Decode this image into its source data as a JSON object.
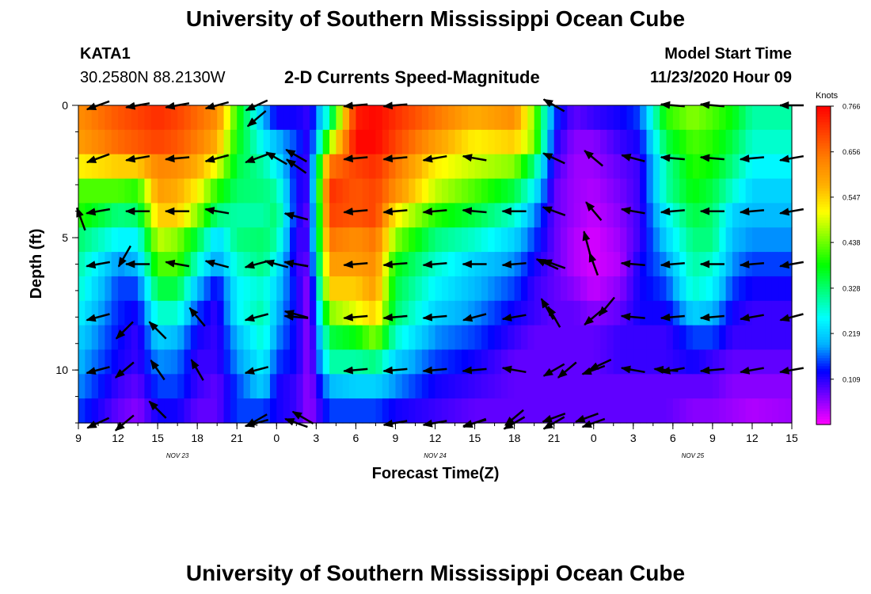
{
  "page": {
    "title": "University of Southern Mississippi Ocean Cube",
    "footer_title": "University of Southern Mississippi Ocean Cube",
    "station": "KATA1",
    "coords": "30.2580N 88.2130W",
    "subtitle": "2-D Currents Speed-Magnitude",
    "model_start_label": "Model Start Time",
    "model_start_value": "11/23/2020 Hour 09"
  },
  "chart_data": {
    "type": "heatmap",
    "title": "2-D Currents Speed-Magnitude",
    "xlabel": "Forecast Time(Z)",
    "ylabel": "Depth (ft)",
    "x_tick_labels": [
      "9",
      "12",
      "15",
      "18",
      "21",
      "0",
      "3",
      "6",
      "9",
      "12",
      "15",
      "18",
      "21",
      "0",
      "3",
      "6",
      "9",
      "12",
      "15"
    ],
    "x_tick_hours": [
      0,
      3,
      6,
      9,
      12,
      15,
      18,
      21,
      24,
      27,
      30,
      33,
      36,
      39,
      42,
      45,
      48,
      51,
      54
    ],
    "x_range_hours": [
      0,
      54
    ],
    "date_labels": [
      {
        "label": "NOV 23",
        "hour": 7.5
      },
      {
        "label": "NOV 24",
        "hour": 27
      },
      {
        "label": "NOV 25",
        "hour": 46.5
      }
    ],
    "y_ticks": [
      0,
      5,
      10
    ],
    "y_tick_labels": [
      "0",
      "5",
      "10"
    ],
    "y_range_ft": [
      0,
      12
    ],
    "y_inverted": true,
    "colorbar": {
      "unit": "Knots",
      "ticks": [
        "0.766",
        "0.656",
        "0.547",
        "0.438",
        "0.328",
        "0.219",
        "0.109"
      ],
      "min": 0.0,
      "max": 0.766,
      "colors": [
        "#ff00ff",
        "#8000ff",
        "#0000ff",
        "#00b0ff",
        "#00ffff",
        "#00ff80",
        "#00ff00",
        "#80ff00",
        "#ffff00",
        "#ffb000",
        "#ff8000",
        "#ff4000",
        "#ff0000"
      ]
    },
    "keyframes_hours": [
      0,
      3,
      4.5,
      6,
      7.5,
      9,
      10.5,
      12,
      14,
      15,
      16.5,
      17.5,
      19,
      21,
      22.5,
      24,
      27,
      30,
      33,
      34.5,
      36,
      37.5,
      39,
      41,
      42.5,
      44.5,
      46.5,
      48,
      49.5,
      51,
      54
    ],
    "keyframe_profiles": [
      [
        0.62,
        0.6,
        0.52,
        0.42,
        0.4,
        0.33,
        0.3,
        0.28,
        0.25,
        0.22,
        0.2,
        0.18,
        0.15
      ],
      [
        0.68,
        0.66,
        0.55,
        0.42,
        0.32,
        0.25,
        0.18,
        0.15,
        0.14,
        0.13,
        0.12,
        0.1,
        0.08
      ],
      [
        0.7,
        0.68,
        0.55,
        0.4,
        0.33,
        0.25,
        0.2,
        0.15,
        0.12,
        0.1,
        0.1,
        0.08,
        0.06
      ],
      [
        0.72,
        0.7,
        0.63,
        0.6,
        0.55,
        0.48,
        0.42,
        0.35,
        0.28,
        0.22,
        0.18,
        0.15,
        0.12
      ],
      [
        0.7,
        0.68,
        0.62,
        0.58,
        0.55,
        0.45,
        0.42,
        0.35,
        0.28,
        0.2,
        0.17,
        0.15,
        0.12
      ],
      [
        0.66,
        0.64,
        0.58,
        0.52,
        0.45,
        0.35,
        0.28,
        0.2,
        0.15,
        0.12,
        0.1,
        0.1,
        0.08
      ],
      [
        0.62,
        0.58,
        0.5,
        0.4,
        0.32,
        0.22,
        0.18,
        0.12,
        0.1,
        0.1,
        0.1,
        0.08,
        0.08
      ],
      [
        0.4,
        0.38,
        0.35,
        0.33,
        0.3,
        0.32,
        0.28,
        0.25,
        0.25,
        0.2,
        0.18,
        0.15,
        0.15
      ],
      [
        0.2,
        0.25,
        0.3,
        0.32,
        0.3,
        0.33,
        0.32,
        0.28,
        0.3,
        0.28,
        0.25,
        0.22,
        0.15
      ],
      [
        0.12,
        0.2,
        0.25,
        0.3,
        0.33,
        0.3,
        0.25,
        0.22,
        0.2,
        0.18,
        0.15,
        0.12,
        0.12
      ],
      [
        0.12,
        0.15,
        0.12,
        0.12,
        0.12,
        0.1,
        0.1,
        0.12,
        0.12,
        0.12,
        0.12,
        0.1,
        0.1
      ],
      [
        0.1,
        0.1,
        0.1,
        0.1,
        0.08,
        0.1,
        0.08,
        0.05,
        0.05,
        0.05,
        0.05,
        0.05,
        0.05
      ],
      [
        0.3,
        0.45,
        0.65,
        0.72,
        0.7,
        0.65,
        0.6,
        0.55,
        0.45,
        0.35,
        0.3,
        0.2,
        0.15
      ],
      [
        0.74,
        0.76,
        0.7,
        0.68,
        0.68,
        0.62,
        0.6,
        0.55,
        0.5,
        0.38,
        0.3,
        0.22,
        0.15
      ],
      [
        0.76,
        0.76,
        0.72,
        0.7,
        0.7,
        0.65,
        0.62,
        0.6,
        0.55,
        0.45,
        0.32,
        0.22,
        0.15
      ],
      [
        0.72,
        0.7,
        0.65,
        0.62,
        0.52,
        0.45,
        0.38,
        0.35,
        0.33,
        0.28,
        0.22,
        0.18,
        0.12
      ],
      [
        0.65,
        0.6,
        0.52,
        0.48,
        0.4,
        0.32,
        0.28,
        0.25,
        0.22,
        0.18,
        0.15,
        0.12,
        0.1
      ],
      [
        0.58,
        0.52,
        0.48,
        0.42,
        0.35,
        0.28,
        0.22,
        0.2,
        0.18,
        0.15,
        0.12,
        0.1,
        0.08
      ],
      [
        0.62,
        0.55,
        0.45,
        0.35,
        0.28,
        0.22,
        0.18,
        0.15,
        0.12,
        0.1,
        0.08,
        0.08,
        0.08
      ],
      [
        0.45,
        0.45,
        0.32,
        0.25,
        0.18,
        0.15,
        0.12,
        0.1,
        0.1,
        0.08,
        0.08,
        0.08,
        0.08
      ],
      [
        0.15,
        0.12,
        0.1,
        0.08,
        0.08,
        0.08,
        0.08,
        0.08,
        0.08,
        0.08,
        0.08,
        0.08,
        0.08
      ],
      [
        0.08,
        0.06,
        0.05,
        0.05,
        0.05,
        0.04,
        0.04,
        0.06,
        0.08,
        0.08,
        0.08,
        0.08,
        0.08
      ],
      [
        0.1,
        0.06,
        0.05,
        0.04,
        0.03,
        0.02,
        0.02,
        0.03,
        0.06,
        0.08,
        0.08,
        0.08,
        0.08
      ],
      [
        0.12,
        0.1,
        0.08,
        0.07,
        0.06,
        0.05,
        0.04,
        0.06,
        0.08,
        0.1,
        0.1,
        0.08,
        0.08
      ],
      [
        0.15,
        0.12,
        0.1,
        0.1,
        0.1,
        0.1,
        0.12,
        0.12,
        0.12,
        0.1,
        0.1,
        0.08,
        0.08
      ],
      [
        0.4,
        0.35,
        0.3,
        0.3,
        0.25,
        0.22,
        0.18,
        0.15,
        0.12,
        0.1,
        0.1,
        0.08,
        0.08
      ],
      [
        0.45,
        0.42,
        0.4,
        0.38,
        0.35,
        0.32,
        0.3,
        0.28,
        0.22,
        0.15,
        0.12,
        0.08,
        0.06
      ],
      [
        0.42,
        0.4,
        0.38,
        0.35,
        0.33,
        0.32,
        0.28,
        0.25,
        0.2,
        0.15,
        0.1,
        0.08,
        0.06
      ],
      [
        0.38,
        0.35,
        0.32,
        0.28,
        0.22,
        0.2,
        0.18,
        0.15,
        0.12,
        0.1,
        0.08,
        0.06,
        0.05
      ],
      [
        0.3,
        0.28,
        0.25,
        0.22,
        0.2,
        0.18,
        0.15,
        0.12,
        0.1,
        0.1,
        0.08,
        0.06,
        0.04
      ],
      [
        0.3,
        0.28,
        0.25,
        0.22,
        0.2,
        0.18,
        0.15,
        0.12,
        0.1,
        0.1,
        0.08,
        0.06,
        0.05
      ]
    ],
    "arrow_depths_ft": [
      0,
      2,
      4,
      6,
      8,
      10,
      12
    ],
    "arrow_columns": [
      {
        "hour": 1.5,
        "dirs": [
          20,
          20,
          10,
          10,
          15,
          15,
          25
        ]
      },
      {
        "hour": 4.5,
        "dirs": [
          10,
          10,
          0,
          0,
          null,
          null,
          null
        ]
      },
      {
        "hour": 7.5,
        "dirs": [
          10,
          5,
          0,
          -10,
          null,
          null,
          null
        ]
      },
      {
        "hour": 10.5,
        "dirs": [
          15,
          15,
          -10,
          -15,
          null,
          null,
          null
        ]
      },
      {
        "hour": 13.5,
        "dirs": [
          25,
          20,
          null,
          15,
          15,
          15,
          15
        ]
      },
      {
        "hour": 15,
        "dirs": [
          null,
          -30,
          null,
          -15,
          null,
          null,
          null
        ]
      },
      {
        "hour": 16.5,
        "dirs": [
          null,
          null,
          null,
          -10,
          -5,
          null,
          -20
        ]
      },
      {
        "hour": 21,
        "dirs": [
          5,
          5,
          5,
          5,
          5,
          5,
          null
        ]
      },
      {
        "hour": 24,
        "dirs": [
          5,
          5,
          5,
          5,
          5,
          5,
          10
        ]
      },
      {
        "hour": 27,
        "dirs": [
          null,
          10,
          5,
          5,
          5,
          5,
          10
        ]
      },
      {
        "hour": 30,
        "dirs": [
          null,
          -10,
          -5,
          0,
          15,
          5,
          20
        ]
      },
      {
        "hour": 33,
        "dirs": [
          null,
          null,
          0,
          5,
          10,
          -10,
          30
        ]
      },
      {
        "hour": 36,
        "dirs": [
          -30,
          -25,
          -20,
          -20,
          -60,
          30,
          30
        ]
      },
      {
        "hour": 39,
        "dirs": [
          null,
          -40,
          -50,
          -70,
          40,
          20,
          20
        ]
      },
      {
        "hour": 42,
        "dirs": [
          null,
          -15,
          -10,
          -5,
          -5,
          -10,
          null
        ]
      },
      {
        "hour": 45,
        "dirs": [
          -5,
          -5,
          5,
          5,
          5,
          10,
          null
        ]
      },
      {
        "hour": 48,
        "dirs": [
          -5,
          -5,
          0,
          0,
          5,
          5,
          null
        ]
      },
      {
        "hour": 51,
        "dirs": [
          null,
          5,
          5,
          5,
          10,
          10,
          null
        ]
      },
      {
        "hour": 54,
        "dirs": [
          0,
          10,
          10,
          10,
          15,
          10,
          null
        ]
      }
    ],
    "partial_arrows": [
      {
        "hour": 0.2,
        "depth": 4.3,
        "dir": -70
      },
      {
        "hour": 3.5,
        "depth": 5.7,
        "dir": 60
      },
      {
        "hour": 3.5,
        "depth": 8.5,
        "dir": 45
      },
      {
        "hour": 3.5,
        "depth": 10,
        "dir": 40
      },
      {
        "hour": 6,
        "depth": 8.5,
        "dir": -45
      },
      {
        "hour": 6,
        "depth": 10,
        "dir": -55
      },
      {
        "hour": 6,
        "depth": 11.5,
        "dir": -45
      },
      {
        "hour": 3.5,
        "depth": 12,
        "dir": 40
      },
      {
        "hour": 13.5,
        "depth": 0.5,
        "dir": 40
      },
      {
        "hour": 16.5,
        "depth": 2.3,
        "dir": -35
      },
      {
        "hour": 16.5,
        "depth": 4.2,
        "dir": -15
      },
      {
        "hour": 16.5,
        "depth": 6,
        "dir": -10
      },
      {
        "hour": 16.5,
        "depth": 7.9,
        "dir": -15
      },
      {
        "hour": 17,
        "depth": 11.8,
        "dir": -30
      },
      {
        "hour": 9,
        "depth": 8,
        "dir": -50
      },
      {
        "hour": 9,
        "depth": 10,
        "dir": -60
      },
      {
        "hour": 13.5,
        "depth": 11.9,
        "dir": 30
      },
      {
        "hour": 16.5,
        "depth": 1.9,
        "dir": -30
      },
      {
        "hour": 35.5,
        "depth": 6,
        "dir": -25
      },
      {
        "hour": 35.5,
        "depth": 7.7,
        "dir": -60
      },
      {
        "hour": 37,
        "depth": 10,
        "dir": 40
      },
      {
        "hour": 38.5,
        "depth": 11.8,
        "dir": 20
      },
      {
        "hour": 39.5,
        "depth": 9.8,
        "dir": 25
      },
      {
        "hour": 40,
        "depth": 7.6,
        "dir": 50
      },
      {
        "hour": 38.5,
        "depth": 5.2,
        "dir": -75
      },
      {
        "hour": 36,
        "depth": 11.8,
        "dir": 20
      },
      {
        "hour": 33,
        "depth": 11.8,
        "dir": 40
      },
      {
        "hour": 30,
        "depth": 12,
        "dir": 15
      },
      {
        "hour": 44.5,
        "depth": 10,
        "dir": -5
      }
    ]
  }
}
